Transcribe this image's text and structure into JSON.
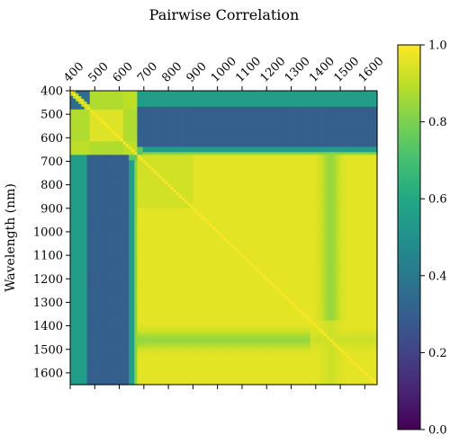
{
  "chart_data": {
    "type": "heatmap",
    "title": "Pairwise Correlation",
    "ylabel": "Wavelength (nm)",
    "xlabel": "",
    "x_ticks": [
      "400",
      "500",
      "600",
      "700",
      "800",
      "900",
      "1000",
      "1100",
      "1200",
      "1300",
      "1400",
      "1500",
      "1600"
    ],
    "y_ticks": [
      "400",
      "500",
      "600",
      "700",
      "800",
      "900",
      "1000",
      "1100",
      "1200",
      "1300",
      "1400",
      "1500",
      "1600"
    ],
    "wavelength_range": [
      400,
      1650
    ],
    "colorbar": {
      "colormap": "viridis",
      "range": [
        0.0,
        1.0
      ],
      "ticks": [
        "0.0",
        "0.2",
        "0.4",
        "0.6",
        "0.8",
        "1.0"
      ]
    },
    "grid": false
  }
}
